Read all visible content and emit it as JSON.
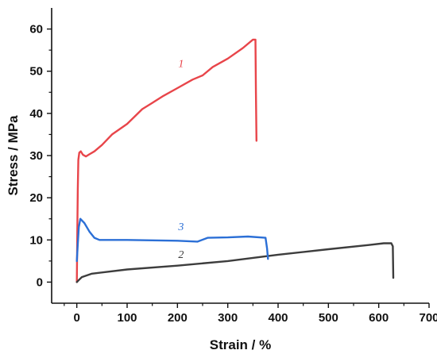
{
  "chart_data": {
    "type": "line",
    "title": "",
    "xlabel": "Strain / %",
    "ylabel": "Stress / MPa",
    "xlim": [
      -50,
      700
    ],
    "ylim": [
      -5,
      65
    ],
    "xticks": [
      0,
      100,
      200,
      300,
      400,
      500,
      600,
      700
    ],
    "yticks": [
      0,
      10,
      20,
      30,
      40,
      50,
      60
    ],
    "grid": false,
    "series": [
      {
        "name": "1",
        "color": "#e8454a",
        "label_at": [
          170,
          51
        ],
        "points": [
          [
            0,
            0
          ],
          [
            1,
            12
          ],
          [
            2,
            22
          ],
          [
            3,
            29
          ],
          [
            5,
            30.7
          ],
          [
            8,
            31
          ],
          [
            12,
            30.2
          ],
          [
            18,
            29.8
          ],
          [
            25,
            30.3
          ],
          [
            35,
            31
          ],
          [
            50,
            32.5
          ],
          [
            70,
            35
          ],
          [
            100,
            37.5
          ],
          [
            130,
            41
          ],
          [
            150,
            42.5
          ],
          [
            170,
            44
          ],
          [
            200,
            46
          ],
          [
            230,
            48
          ],
          [
            250,
            49
          ],
          [
            270,
            51
          ],
          [
            300,
            53
          ],
          [
            330,
            55.5
          ],
          [
            350,
            57.5
          ],
          [
            355,
            57.5
          ],
          [
            356,
            45
          ],
          [
            357,
            33.5
          ]
        ]
      },
      {
        "name": "2",
        "color": "#3d3d3d",
        "label_at": [
          170,
          5.7
        ],
        "points": [
          [
            0,
            0
          ],
          [
            4,
            0.5
          ],
          [
            10,
            1.2
          ],
          [
            30,
            2
          ],
          [
            100,
            3
          ],
          [
            200,
            3.9
          ],
          [
            300,
            5
          ],
          [
            400,
            6.5
          ],
          [
            500,
            7.8
          ],
          [
            580,
            8.8
          ],
          [
            610,
            9.2
          ],
          [
            625,
            9.2
          ],
          [
            628,
            8.5
          ],
          [
            629,
            1
          ]
        ]
      },
      {
        "name": "3",
        "color": "#2b6fd6",
        "label_at": [
          170,
          12.3
        ],
        "points": [
          [
            0,
            5
          ],
          [
            2,
            9
          ],
          [
            4,
            13
          ],
          [
            7,
            15
          ],
          [
            15,
            14
          ],
          [
            25,
            12
          ],
          [
            35,
            10.5
          ],
          [
            45,
            10
          ],
          [
            100,
            10
          ],
          [
            200,
            9.8
          ],
          [
            240,
            9.6
          ],
          [
            260,
            10.5
          ],
          [
            300,
            10.6
          ],
          [
            340,
            10.8
          ],
          [
            375,
            10.5
          ],
          [
            378,
            8
          ],
          [
            380,
            5.5
          ]
        ]
      }
    ]
  }
}
